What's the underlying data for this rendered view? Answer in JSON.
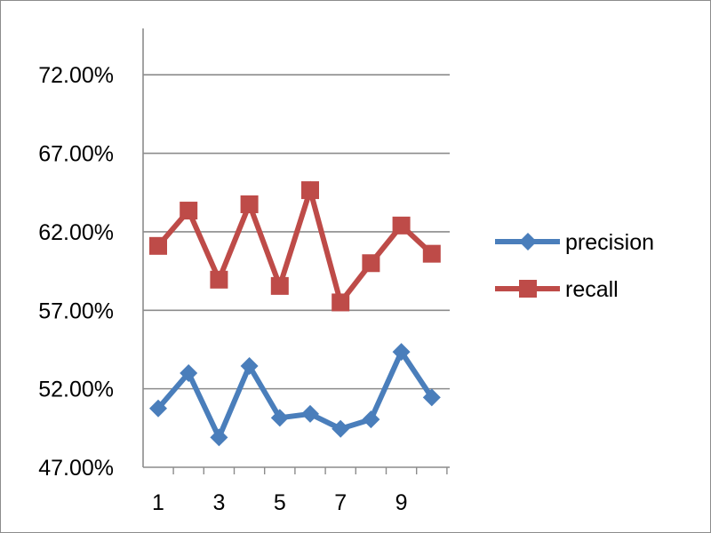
{
  "chart_data": {
    "type": "line",
    "title": "",
    "xlabel": "",
    "ylabel": "",
    "x": [
      1,
      2,
      3,
      4,
      5,
      6,
      7,
      8,
      9,
      10
    ],
    "x_tick_labels": [
      "1",
      "3",
      "5",
      "7",
      "9"
    ],
    "ylim": [
      0.47,
      0.745
    ],
    "y_tick_labels": [
      "47.00%",
      "52.00%",
      "57.00%",
      "62.00%",
      "67.00%",
      "72.00%"
    ],
    "y_tick_values": [
      0.47,
      0.52,
      0.57,
      0.62,
      0.67,
      0.72
    ],
    "grid": "horizontal",
    "legend_position": "right",
    "series": [
      {
        "name": "precision",
        "color": "#4a7ebb",
        "marker": "diamond",
        "values": [
          0.5075,
          0.53,
          0.489,
          0.5345,
          0.5015,
          0.504,
          0.4945,
          0.5005,
          0.5435,
          0.5145
        ]
      },
      {
        "name": "recall",
        "color": "#be4b48",
        "marker": "square",
        "values": [
          0.611,
          0.6335,
          0.5895,
          0.6375,
          0.5855,
          0.6465,
          0.575,
          0.6,
          0.624,
          0.606
        ]
      }
    ]
  }
}
